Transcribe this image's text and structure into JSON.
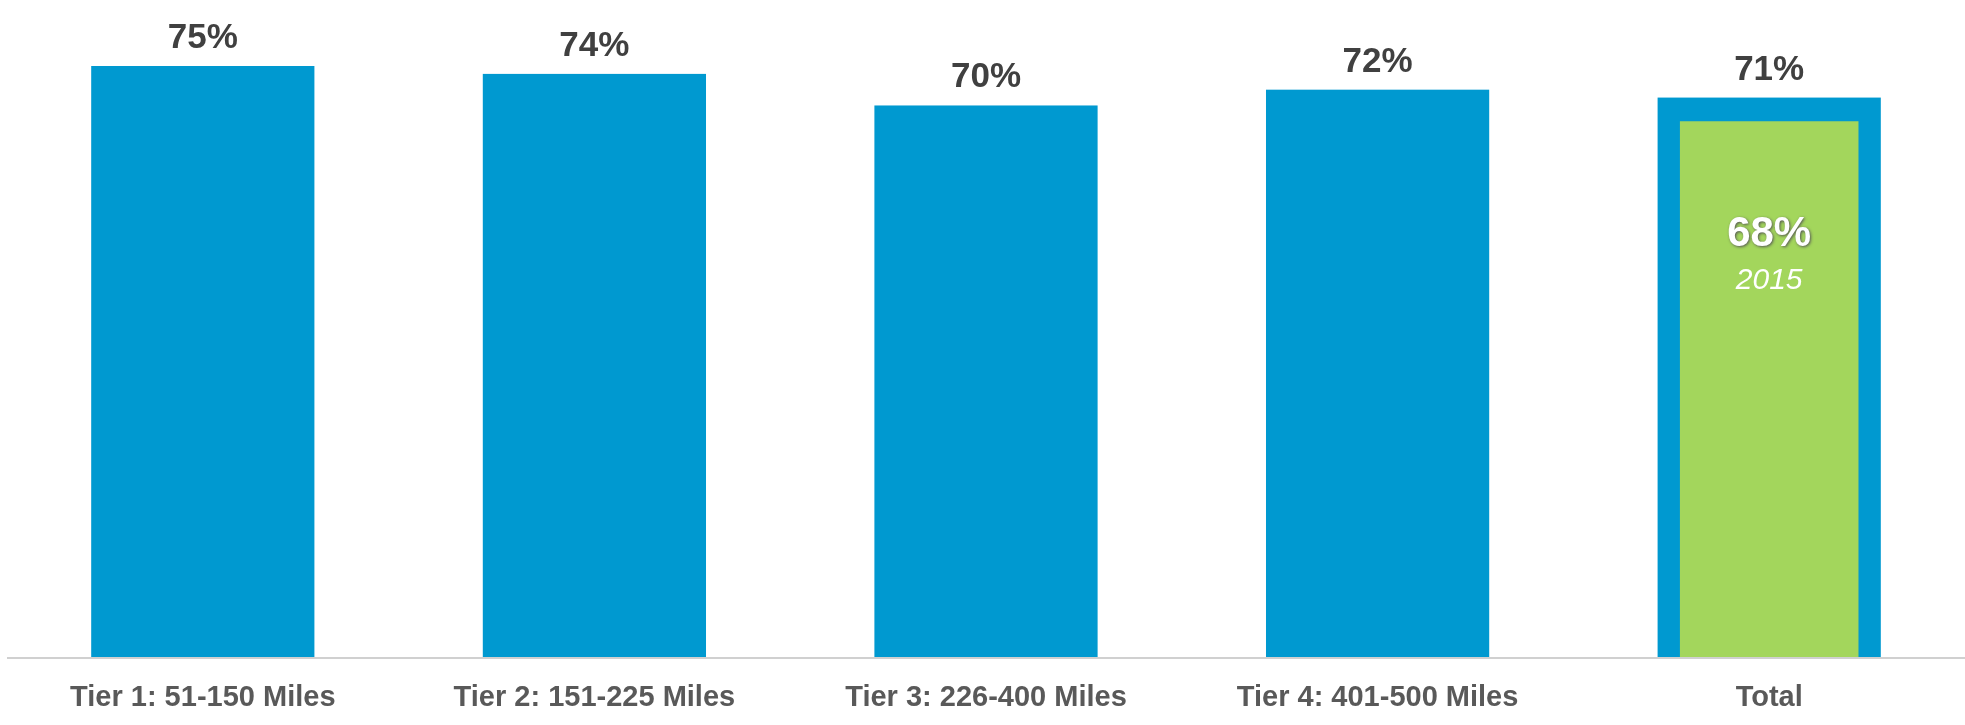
{
  "chart_data": {
    "type": "bar",
    "categories": [
      "Tier 1: 51-150 Miles",
      "Tier 2: 151-225 Miles",
      "Tier 3: 226-400 Miles",
      "Tier 4: 401-500 Miles",
      "Total"
    ],
    "series": [
      {
        "color": "#0099d0",
        "values": [
          75,
          74,
          70,
          72,
          71
        ],
        "value_labels": [
          "75%",
          "74%",
          "70%",
          "72%",
          "71%"
        ]
      },
      {
        "name": "2015",
        "color": "#a3d65c",
        "values": [
          null,
          null,
          null,
          null,
          68
        ],
        "value_labels": [
          null,
          null,
          null,
          null,
          "68%"
        ]
      }
    ],
    "tick_labels": "x",
    "grid": false,
    "legend": false
  }
}
